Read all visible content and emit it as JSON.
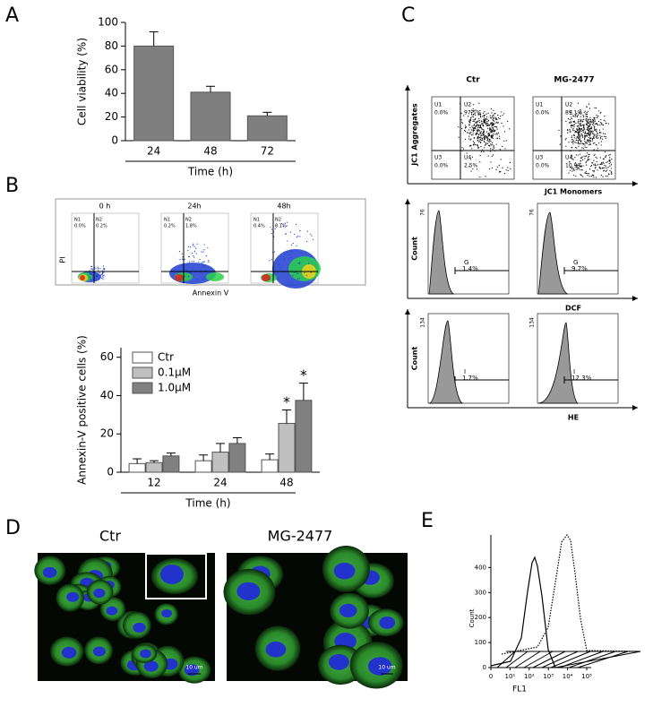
{
  "chart_data": [
    {
      "type": "bar",
      "panel": "A",
      "ylabel": "Cell viability (%)",
      "xlabel": "Time (h)",
      "categories": [
        "24",
        "48",
        "72"
      ],
      "values": [
        80,
        41,
        21
      ],
      "errors": [
        12,
        5,
        3
      ],
      "color": "#7f7f7f",
      "ylim": [
        0,
        100
      ],
      "yticks": [
        0,
        20,
        40,
        60,
        80,
        100
      ]
    },
    {
      "type": "grouped-bar",
      "panel": "B",
      "ylabel": "Annexin-V positive cells (%)",
      "xlabel": "Time (h)",
      "categories": [
        "12",
        "24",
        "48"
      ],
      "series": [
        {
          "name": "Ctr",
          "color": "#ffffff",
          "values": [
            4.5,
            6,
            6.5
          ],
          "errors": [
            2.5,
            3,
            3
          ]
        },
        {
          "name": "0.1μM",
          "color": "#c0c0c0",
          "values": [
            5,
            10.5,
            25.5
          ],
          "errors": [
            1,
            4.5,
            7
          ]
        },
        {
          "name": "1.0μM",
          "color": "#808080",
          "values": [
            8.5,
            15,
            37.5
          ],
          "errors": [
            1.5,
            3,
            9
          ]
        }
      ],
      "ylim": [
        0,
        65
      ],
      "yticks": [
        0,
        20,
        40,
        60
      ],
      "legend": "upper-left",
      "annotations": [
        {
          "text": "*",
          "series": "0.1μM",
          "category": "48"
        },
        {
          "text": "*",
          "series": "1.0μM",
          "category": "48"
        }
      ]
    },
    {
      "type": "histogram-overlay",
      "panel": "E",
      "ylabel": "Count",
      "xlabel": "FL1",
      "ylim": [
        0,
        480
      ],
      "yticks": [
        0,
        100,
        200,
        300,
        400
      ],
      "xscale": "log",
      "xlim": [
        0,
        100000
      ],
      "xticks": [
        {
          "value": 0,
          "label": "0"
        },
        {
          "value": 10,
          "label": "10¹"
        },
        {
          "value": 100,
          "label": "10²"
        },
        {
          "value": 1000,
          "label": "10³"
        },
        {
          "value": 10000,
          "label": "10⁴"
        },
        {
          "value": 100000,
          "label": "10⁵"
        }
      ]
    }
  ],
  "annexin_plots": {
    "ylabel": "PI",
    "xlabel": "Annexin V",
    "plots": [
      {
        "title": "0 h",
        "quadrants": [
          {
            "name": "N1",
            "percent": "0.0%"
          },
          {
            "name": "N2",
            "percent": "0.2%"
          }
        ]
      },
      {
        "title": "24h",
        "quadrants": [
          {
            "name": "N1",
            "percent": "0.2%"
          },
          {
            "name": "N2",
            "percent": "1.8%"
          }
        ]
      },
      {
        "title": "48h",
        "quadrants": [
          {
            "name": "N1",
            "percent": "0.4%"
          },
          {
            "name": "N2",
            "percent": "8.1%"
          }
        ]
      }
    ]
  },
  "flow_panel": {
    "label": "C",
    "jc1": {
      "ylabel": "JC1 Aggregates",
      "xlabel": "JC1 Monomers",
      "plots": [
        {
          "title": "Ctr",
          "quadrants": [
            {
              "name": "U1",
              "percent": "0.0%"
            },
            {
              "name": "U2",
              "percent": "97.5%"
            },
            {
              "name": "U3",
              "percent": "0.0%"
            },
            {
              "name": "U4",
              "percent": "2.5%"
            }
          ]
        },
        {
          "title": "MG-2477",
          "quadrants": [
            {
              "name": "U1",
              "percent": "0.0%"
            },
            {
              "name": "U2",
              "percent": "89.1%"
            },
            {
              "name": "U3",
              "percent": "0.0%"
            },
            {
              "name": "U4",
              "percent": "10.9%"
            }
          ]
        }
      ]
    },
    "dcf": {
      "ylabel": "Count",
      "xlabel": "DCF",
      "ymax_label": "76",
      "plots": [
        {
          "gate": "G",
          "percent": "1.4%"
        },
        {
          "gate": "G",
          "percent": "9.7%"
        }
      ]
    },
    "he": {
      "ylabel": "Count",
      "xlabel": "HE",
      "ymax_label": "134",
      "plots": [
        {
          "gate": "I",
          "percent": "1.7%"
        },
        {
          "gate": "I",
          "percent": "12.3%"
        }
      ]
    }
  },
  "microscopy": {
    "label": "D",
    "images": [
      {
        "title": "Ctr",
        "scale_bar": "10 um"
      },
      {
        "title": "MG-2477",
        "scale_bar": "10 um"
      }
    ]
  }
}
